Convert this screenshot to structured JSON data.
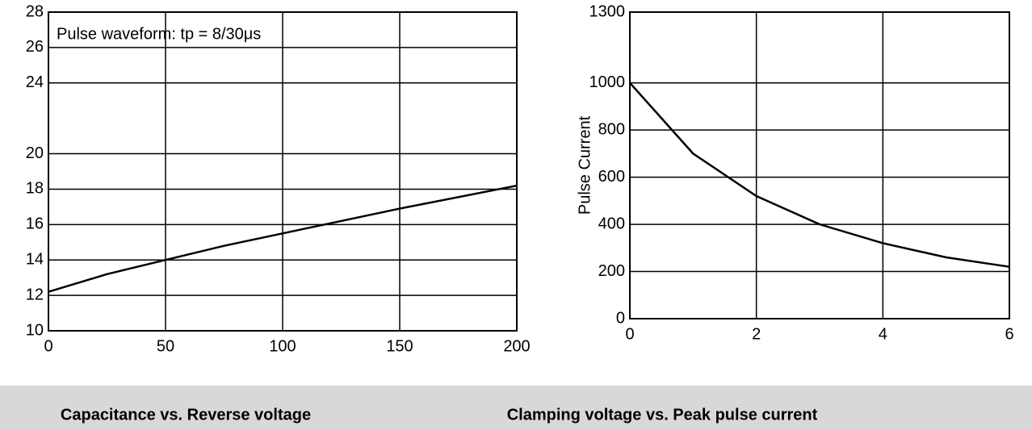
{
  "chart_data": [
    {
      "type": "line",
      "title": "Clamping voltage vs. Peak pulse current",
      "annotation": "Pulse waveform: tp = 8/30μs",
      "x": [
        0,
        25,
        50,
        75,
        100,
        125,
        150,
        200
      ],
      "series": [
        {
          "color": "#000000",
          "values": [
            12.2,
            13.2,
            14.0,
            14.8,
            15.5,
            16.2,
            16.9,
            18.2
          ]
        }
      ],
      "xlim": [
        0,
        200
      ],
      "xticks": [
        0,
        50,
        100,
        150,
        200
      ],
      "ylim": [
        10,
        28
      ],
      "yticks": [
        10,
        12,
        14,
        16,
        18,
        20,
        24,
        26,
        28
      ],
      "grid": true
    },
    {
      "type": "line",
      "title": "Capacitance vs. Reverse voltage",
      "ylabel": "Pulse Current",
      "x": [
        0,
        1,
        2,
        3,
        4,
        5,
        6
      ],
      "series": [
        {
          "color": "#000000",
          "values": [
            1000,
            700,
            520,
            400,
            320,
            260,
            220
          ]
        }
      ],
      "xlim": [
        0,
        6
      ],
      "xticks": [
        0,
        2,
        4,
        6
      ],
      "ylim": [
        0,
        1300
      ],
      "yticks": [
        0,
        200,
        400,
        600,
        800,
        1000,
        1300
      ],
      "grid": true
    }
  ]
}
